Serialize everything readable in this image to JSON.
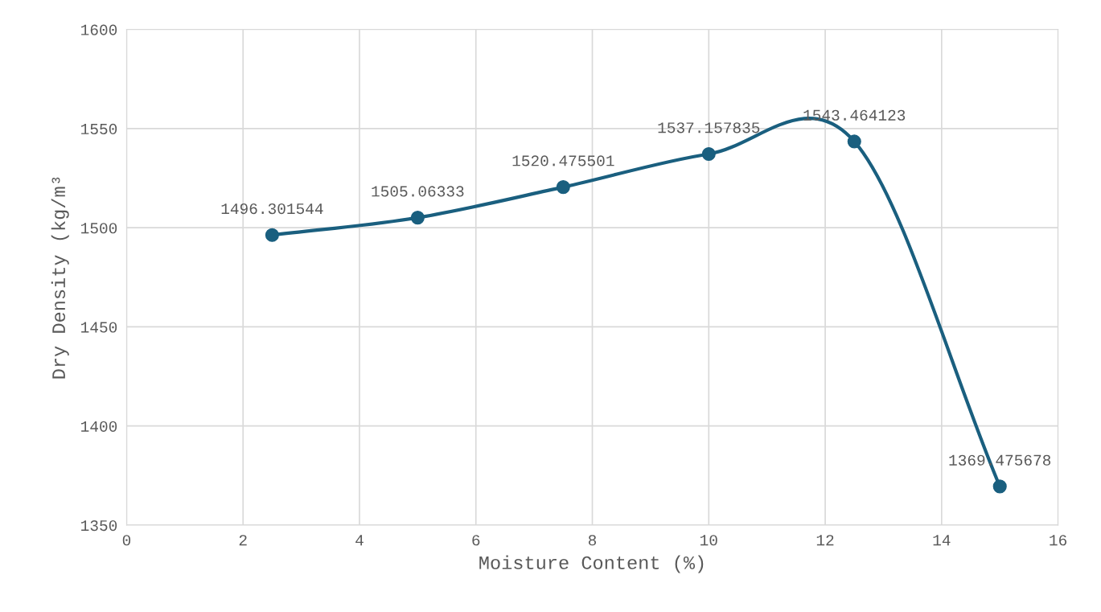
{
  "chart_data": {
    "type": "line",
    "xlabel": "Moisture Content (%)",
    "ylabel": "Dry Density (kg/m³",
    "x": [
      2.5,
      5,
      7.5,
      10,
      12.5,
      15
    ],
    "series": [
      {
        "color": "#1a5f7f",
        "values": [
          1496.301544,
          1505.06333,
          1520.475501,
          1537.157835,
          1543.464123,
          1369.475678
        ]
      }
    ],
    "xlim": [
      0,
      16
    ],
    "xticks": [
      0,
      2,
      4,
      6,
      8,
      10,
      12,
      14,
      16
    ],
    "ylim": [
      1350,
      1600
    ],
    "yticks": [
      1350,
      1400,
      1450,
      1500,
      1550,
      1600
    ],
    "grid": true,
    "marker": "circle",
    "line_style": "solid",
    "data_labels": true
  }
}
